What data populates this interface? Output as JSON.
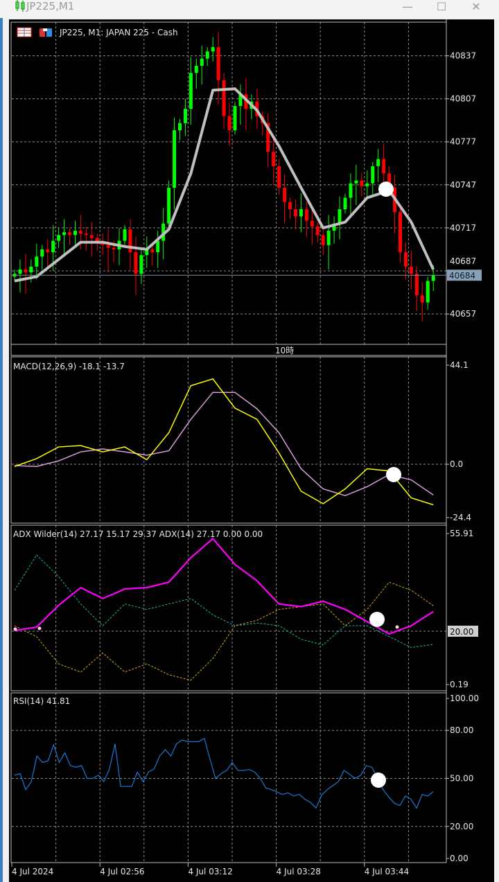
{
  "window": {
    "title": "JP225,M1",
    "minimize_icon": "minimize-icon",
    "maximize_icon": "maximize-icon",
    "close_icon": "close-icon"
  },
  "main_panel": {
    "label": "JP225, M1:  JAPAN 225 - Cash",
    "session_label": "10時",
    "current_price": "40684"
  },
  "colors": {
    "bull": "#00ff00",
    "bear": "#ff0000",
    "moving_average": "#c0c0c0",
    "macd_main": "#ffff00",
    "macd_signal": "#d8a0d8",
    "adx": "#ff00ff",
    "plus_di": "#20b2aa",
    "minus_di": "#daa520",
    "rsi": "#1e78d2",
    "grid": "#c0c0c0",
    "background": "#000000"
  },
  "chart_data": [
    {
      "type": "candlestick",
      "label": "JP225, M1:  JAPAN 225 - Cash",
      "timeframe_minutes": 1,
      "x_start": "4 Jul 2024 02:40",
      "close": [
        40685,
        40688,
        40686,
        40690,
        40697,
        40702,
        40700,
        40708,
        40712,
        40714,
        40712,
        40715,
        40713,
        40712,
        40710,
        40706,
        40705,
        40703,
        40702,
        40708,
        40716,
        40700,
        40685,
        40698,
        40702,
        40700,
        40708,
        40720,
        40745,
        40785,
        40790,
        40800,
        40825,
        40830,
        40835,
        40840,
        40843,
        40820,
        40795,
        40785,
        40802,
        40810,
        40800,
        40805,
        40795,
        40790,
        40770,
        40760,
        40745,
        40735,
        40730,
        40725,
        40730,
        40722,
        40718,
        40712,
        40705,
        40715,
        40720,
        40730,
        40738,
        40748,
        40750,
        40746,
        40748,
        40760,
        40765,
        40755,
        40745,
        40728,
        40700,
        40690,
        40685,
        40670,
        40665,
        40680,
        40684
      ],
      "moving_average": {
        "x": [
          "02:40",
          "02:44",
          "02:48",
          "02:52",
          "02:56",
          "03:00",
          "03:04",
          "03:08",
          "03:12",
          "03:16",
          "03:20",
          "03:24",
          "03:28",
          "03:32",
          "03:36",
          "03:40",
          "03:44",
          "03:48",
          "03:52",
          "03:56"
        ],
        "values": [
          40680,
          40683,
          40695,
          40707,
          40707,
          40704,
          40702,
          40716,
          40755,
          40813,
          40814,
          40799,
          40774,
          40745,
          40717,
          40721,
          40738,
          40743,
          40721,
          40688
        ]
      },
      "y_ticks": [
        40837,
        40807,
        40777,
        40747,
        40717,
        40687,
        40657
      ],
      "ylim": [
        40632,
        40852
      ],
      "current_price": 40684,
      "grid": true
    },
    {
      "type": "line",
      "label": "MACD(12,26,9) -18.1 -13.7",
      "x": [
        "02:40",
        "02:44",
        "02:48",
        "02:52",
        "02:56",
        "03:00",
        "03:04",
        "03:08",
        "03:12",
        "03:16",
        "03:20",
        "03:24",
        "03:28",
        "03:32",
        "03:36",
        "03:40",
        "03:44",
        "03:48",
        "03:52",
        "03:56"
      ],
      "series": [
        {
          "key": "main",
          "values": [
            -1,
            2.5,
            7.7,
            8.3,
            5.5,
            7.7,
            2,
            14,
            35,
            38,
            25,
            20,
            5,
            -12,
            -17.6,
            -11,
            -2,
            -3,
            -15,
            -18.1
          ]
        },
        {
          "key": "signal",
          "values": [
            -0.6,
            -1,
            1.5,
            5.5,
            6.8,
            5.5,
            4,
            6,
            20,
            32,
            32,
            24.7,
            14,
            -2,
            -11,
            -14,
            -10,
            -4.6,
            -7,
            -13.7
          ]
        }
      ],
      "y_ticks": [
        "44.1",
        "0.0",
        "-24.4"
      ],
      "ylim": [
        -24.4,
        44.1
      ]
    },
    {
      "type": "line",
      "label": "ADX Wilder(14) 27.17 15.17 29.37 ADX(14) 27.17 0.00 0.00",
      "x": [
        "02:40",
        "02:44",
        "02:48",
        "02:52",
        "02:56",
        "03:00",
        "03:04",
        "03:08",
        "03:12",
        "03:16",
        "03:20",
        "03:24",
        "03:28",
        "03:32",
        "03:36",
        "03:40",
        "03:44",
        "03:48",
        "03:52",
        "03:56"
      ],
      "series": [
        {
          "key": "adx",
          "values": [
            20.2,
            21.5,
            29.5,
            36,
            32,
            35.5,
            36,
            38,
            47,
            54,
            44.5,
            38.5,
            30,
            29,
            31,
            28,
            23.5,
            19,
            22,
            27.17
          ]
        },
        {
          "key": "plus_di",
          "values": [
            35,
            48,
            40,
            30,
            22,
            30,
            28,
            30,
            32,
            26,
            22,
            23,
            22,
            17,
            15,
            22,
            22,
            18,
            14,
            15.17
          ]
        },
        {
          "key": "minus_di",
          "values": [
            22,
            18,
            8,
            5,
            12,
            5,
            8,
            4,
            2,
            10,
            22,
            24,
            28,
            29,
            30,
            22,
            28,
            38,
            35,
            29.37
          ]
        }
      ],
      "y_ticks": [
        "55.91",
        "20.00",
        "0.19"
      ],
      "ylim": [
        0.19,
        55.91
      ],
      "level": "20.00"
    },
    {
      "type": "line",
      "label": "RSI(14) 41.81",
      "series": [
        {
          "key": "rsi",
          "values": [
            52,
            53,
            43,
            48,
            64,
            60,
            61,
            71,
            60,
            66,
            58,
            57,
            58,
            50,
            50,
            52,
            48,
            56,
            71.6,
            45,
            45,
            45,
            54,
            48,
            54,
            56,
            64,
            68,
            64,
            71.6,
            74,
            73,
            73,
            73,
            75,
            62,
            50,
            53,
            55,
            60,
            55,
            55,
            55.6,
            54,
            50,
            44,
            43,
            41.5,
            40,
            41,
            39,
            40,
            37,
            35,
            31.5,
            39.6,
            43,
            45.5,
            48,
            55,
            52.6,
            50,
            52,
            58,
            57,
            50,
            43,
            38.5,
            34.6,
            33,
            39,
            37,
            31.5,
            40,
            39,
            41.81
          ]
        }
      ],
      "y_ticks": [
        "100.00",
        "80.00",
        "50.00",
        "20.00",
        "0.00"
      ],
      "ylim": [
        0,
        100
      ],
      "levels": [
        80,
        50,
        20
      ]
    }
  ],
  "time_axis": {
    "labels": [
      "4 Jul 2024",
      "4 Jul 02:56",
      "4 Jul 03:12",
      "4 Jul 03:28",
      "4 Jul 03:44"
    ]
  }
}
